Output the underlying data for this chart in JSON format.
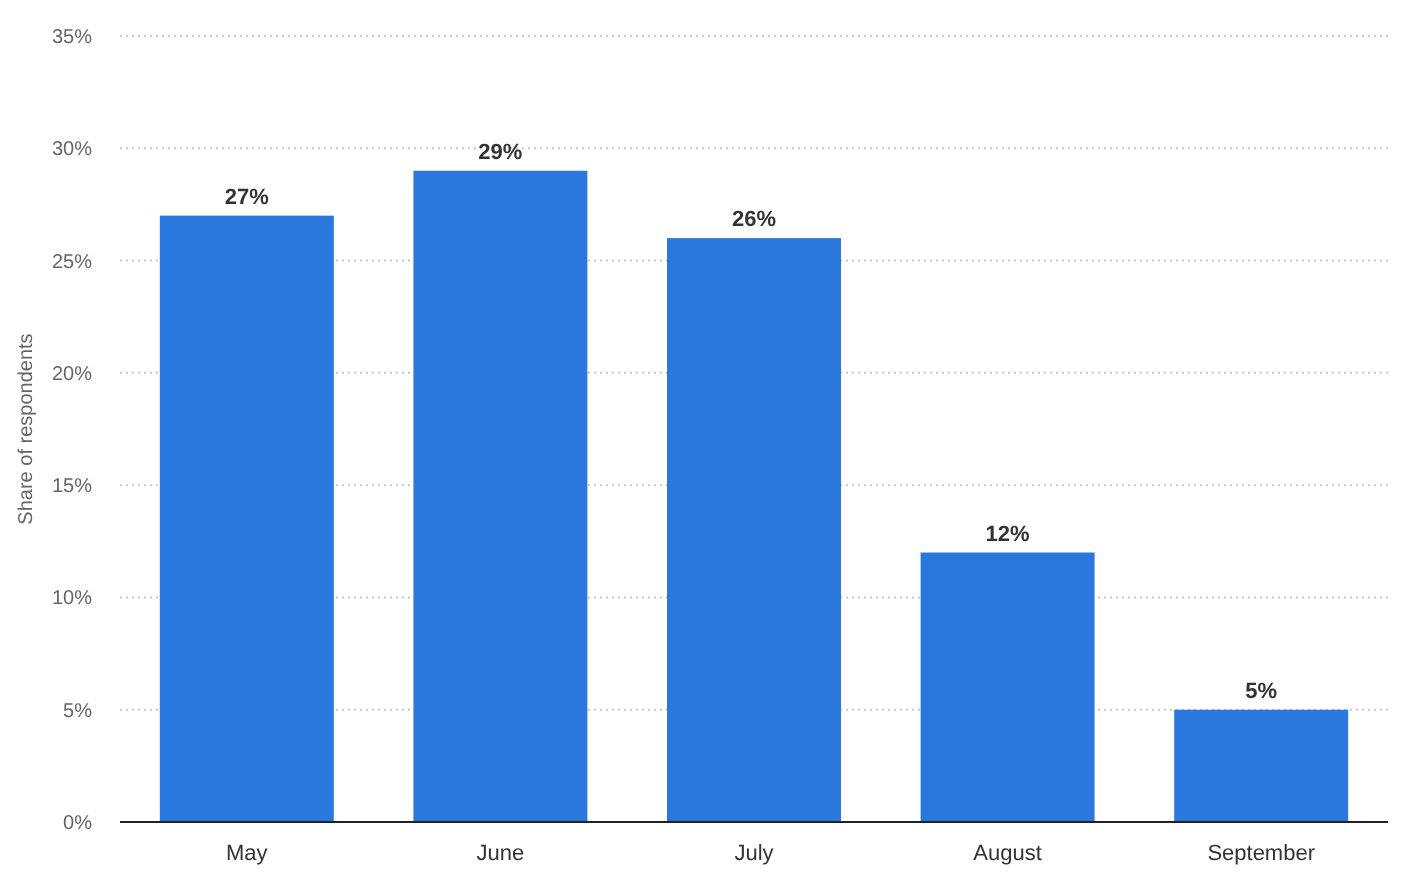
{
  "chart_data": {
    "type": "bar",
    "ylabel": "Share of respondents",
    "categories": [
      "May",
      "June",
      "July",
      "August",
      "September"
    ],
    "values": [
      27,
      29,
      26,
      12,
      5
    ],
    "value_labels": [
      "27%",
      "29%",
      "26%",
      "12%",
      "5%"
    ],
    "color": "#2a78de",
    "ylim": [
      0,
      35
    ],
    "yticks": [
      {
        "value": 0,
        "label": "0%"
      },
      {
        "value": 5,
        "label": "5%"
      },
      {
        "value": 10,
        "label": "10%"
      },
      {
        "value": 15,
        "label": "15%"
      },
      {
        "value": 20,
        "label": "20%"
      },
      {
        "value": 25,
        "label": "25%"
      },
      {
        "value": 30,
        "label": "30%"
      },
      {
        "value": 35,
        "label": "35%"
      }
    ],
    "grid": "y"
  }
}
